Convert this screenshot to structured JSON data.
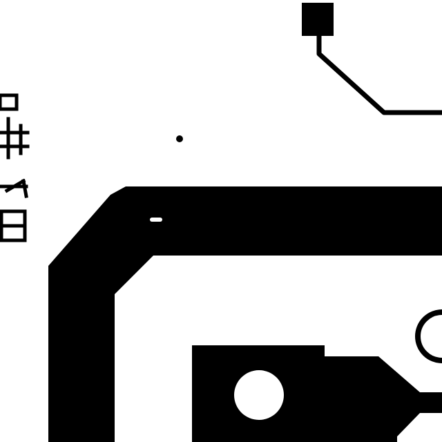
{
  "colors": {
    "background": "#ffffff",
    "copper": "#000000"
  },
  "description_text": "",
  "icons": [
    "square-pad-icon",
    "round-hole-icon",
    "silkscreen-glyphs-icon"
  ]
}
